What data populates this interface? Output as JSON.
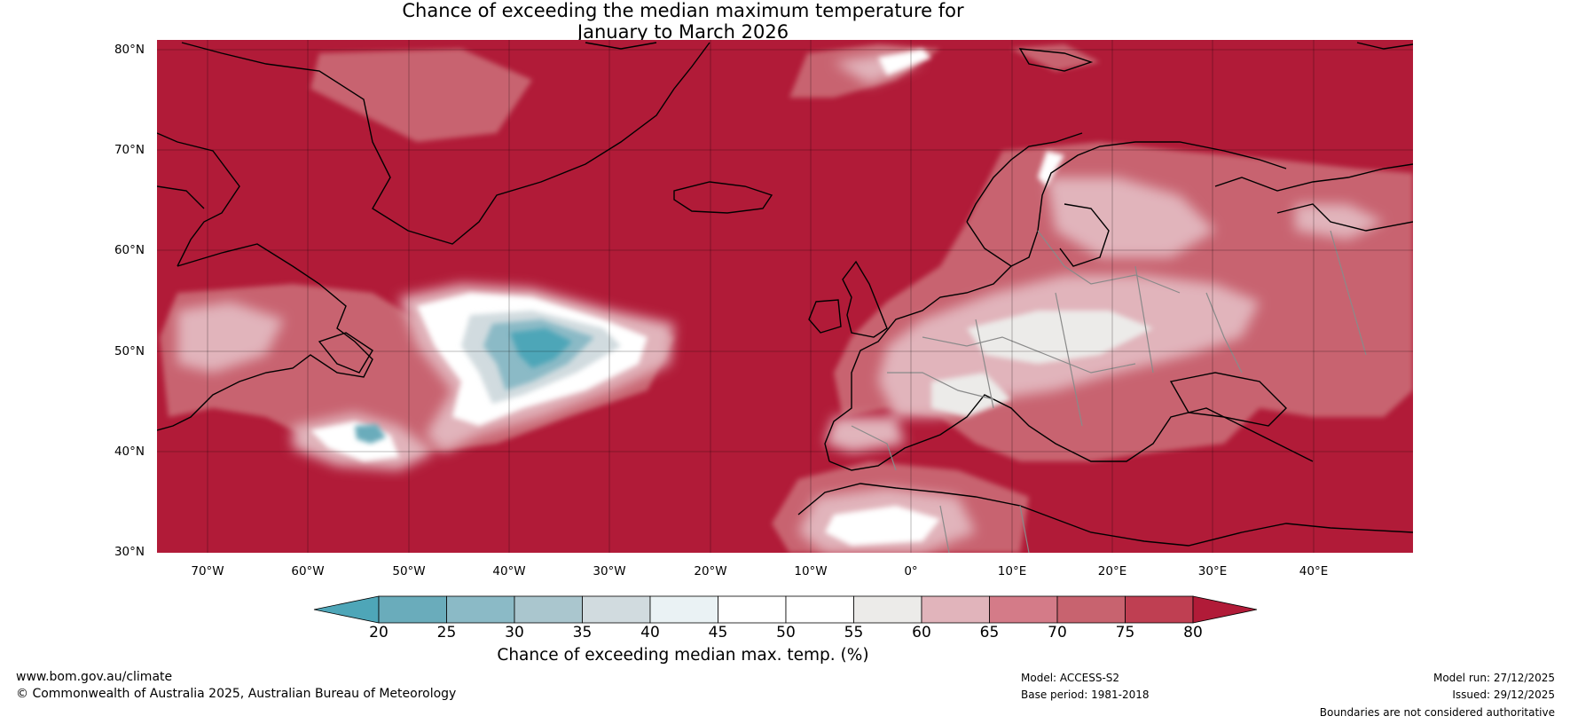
{
  "title": {
    "line1": "Chance of exceeding the median maximum temperature for",
    "line2": "January to March 2026"
  },
  "map": {
    "lat_ticks": [
      "80°N",
      "70°N",
      "60°N",
      "50°N",
      "40°N",
      "30°N"
    ],
    "lon_ticks": [
      "70°W",
      "60°W",
      "50°W",
      "40°W",
      "30°W",
      "20°W",
      "10°W",
      "0°",
      "10°E",
      "20°E",
      "30°E",
      "40°E"
    ],
    "extent": {
      "lon": [
        -75,
        50
      ],
      "lat": [
        30,
        81
      ]
    }
  },
  "colorbar": {
    "ticks": [
      "20",
      "25",
      "30",
      "35",
      "40",
      "45",
      "50",
      "55",
      "60",
      "65",
      "70",
      "75",
      "80"
    ],
    "label": "Chance of exceeding median max. temp. (%)",
    "colors": [
      "#4ea6b8",
      "#6aacbb",
      "#8bbac6",
      "#aac6ce",
      "#d1dbdf",
      "#eaf2f4",
      "#ffffff",
      "#ffffff",
      "#ecebe9",
      "#e1b4bb",
      "#d47b88",
      "#c8636f",
      "#bf3f52",
      "#b11b38"
    ]
  },
  "footer": {
    "website": "www.bom.gov.au/climate",
    "copyright": "© Commonwealth of Australia 2025, Australian Bureau of Meteorology",
    "model": "Model: ACCESS-S2",
    "base_period": "Base period: 1981-2018",
    "model_run": "Model run: 27/12/2025",
    "issued": "Issued: 29/12/2025",
    "disclaimer": "Boundaries are not considered authoritative"
  }
}
